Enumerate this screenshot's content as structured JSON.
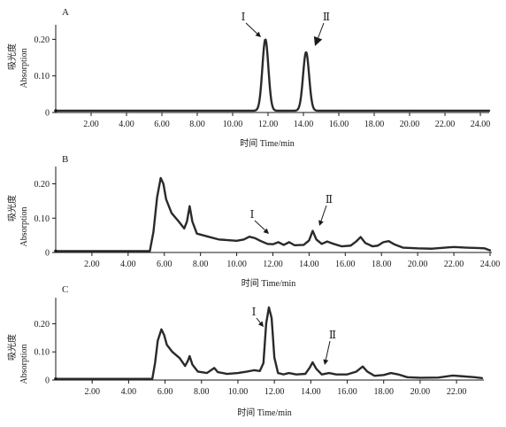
{
  "chart_data": [
    {
      "panel": "A",
      "type": "line",
      "xlabel": "时间  Time/min",
      "ylabel_cn": "吸光度",
      "ylabel_en": "Absorption",
      "xlim": [
        0,
        24.5
      ],
      "ylim": [
        0,
        0.23
      ],
      "xticks": [
        2,
        4,
        6,
        8,
        10,
        12,
        14,
        16,
        18,
        20,
        22,
        24
      ],
      "xtick_labels": [
        "2.00",
        "4.00",
        "6.00",
        "8.00",
        "10.00",
        "12.00",
        "14.00",
        "16.00",
        "18.00",
        "20.00",
        "22.00",
        "24.00"
      ],
      "yticks": [
        0,
        0.1,
        0.2
      ],
      "ytick_labels": [
        "0",
        "0.10",
        "0.20"
      ],
      "baseline": 0.005,
      "peaks": [
        {
          "x": 11.85,
          "h": 0.195,
          "w": 0.17
        },
        {
          "x": 14.15,
          "h": 0.16,
          "w": 0.17
        }
      ],
      "annotations": [
        {
          "label": "Ⅰ",
          "peak_x": 11.85,
          "peak_y": 0.2
        },
        {
          "label": "Ⅱ",
          "peak_x": 14.15,
          "peak_y": 0.165
        }
      ]
    },
    {
      "panel": "B",
      "type": "line",
      "xlabel": "时间  Time/min",
      "ylabel_cn": "吸光度",
      "ylabel_en": "Absorption",
      "xlim": [
        0,
        24.1
      ],
      "ylim": [
        0,
        0.24
      ],
      "xticks": [
        2,
        4,
        6,
        8,
        10,
        12,
        14,
        16,
        18,
        20,
        22,
        24
      ],
      "xtick_labels": [
        "2.00",
        "4.00",
        "6.00",
        "8.00",
        "10.00",
        "12.00",
        "14.00",
        "16.00",
        "18.00",
        "20.00",
        "22.00",
        "24.00"
      ],
      "yticks": [
        0,
        0.1,
        0.2
      ],
      "ytick_labels": [
        "0",
        "0.10",
        "0.20"
      ],
      "points": [
        [
          0,
          0.004
        ],
        [
          5.2,
          0.004
        ],
        [
          5.4,
          0.06
        ],
        [
          5.6,
          0.16
        ],
        [
          5.8,
          0.217
        ],
        [
          5.95,
          0.2
        ],
        [
          6.1,
          0.155
        ],
        [
          6.4,
          0.115
        ],
        [
          6.8,
          0.09
        ],
        [
          7.1,
          0.07
        ],
        [
          7.25,
          0.09
        ],
        [
          7.4,
          0.135
        ],
        [
          7.55,
          0.09
        ],
        [
          7.8,
          0.055
        ],
        [
          8.5,
          0.045
        ],
        [
          9.0,
          0.038
        ],
        [
          9.5,
          0.036
        ],
        [
          10.0,
          0.034
        ],
        [
          10.4,
          0.038
        ],
        [
          10.7,
          0.046
        ],
        [
          11.0,
          0.042
        ],
        [
          11.3,
          0.034
        ],
        [
          11.7,
          0.025
        ],
        [
          12.0,
          0.024
        ],
        [
          12.3,
          0.03
        ],
        [
          12.6,
          0.022
        ],
        [
          12.9,
          0.03
        ],
        [
          13.2,
          0.021
        ],
        [
          13.7,
          0.022
        ],
        [
          14.0,
          0.035
        ],
        [
          14.2,
          0.063
        ],
        [
          14.4,
          0.038
        ],
        [
          14.7,
          0.025
        ],
        [
          15.0,
          0.032
        ],
        [
          15.3,
          0.026
        ],
        [
          15.8,
          0.018
        ],
        [
          16.3,
          0.02
        ],
        [
          16.6,
          0.032
        ],
        [
          16.85,
          0.045
        ],
        [
          17.1,
          0.028
        ],
        [
          17.5,
          0.018
        ],
        [
          17.8,
          0.02
        ],
        [
          18.1,
          0.03
        ],
        [
          18.4,
          0.033
        ],
        [
          18.7,
          0.024
        ],
        [
          19.2,
          0.014
        ],
        [
          20.0,
          0.012
        ],
        [
          20.8,
          0.011
        ],
        [
          21.5,
          0.014
        ],
        [
          22.0,
          0.016
        ],
        [
          22.7,
          0.014
        ],
        [
          23.3,
          0.013
        ],
        [
          23.7,
          0.012
        ],
        [
          24.0,
          0.006
        ]
      ],
      "annotations": [
        {
          "label": "Ⅰ",
          "peak_x": 11.7,
          "peak_y": 0.04
        },
        {
          "label": "Ⅱ",
          "peak_x": 14.2,
          "peak_y": 0.068
        }
      ]
    },
    {
      "panel": "C",
      "type": "line",
      "xlabel": "时间  Time/min",
      "ylabel_cn": "吸光度",
      "ylabel_en": "Absorption",
      "xlim": [
        0,
        23.5
      ],
      "ylim": [
        0,
        0.28
      ],
      "xticks": [
        2,
        4,
        6,
        8,
        10,
        12,
        14,
        16,
        18,
        20,
        22
      ],
      "xtick_labels": [
        "2.00",
        "4.00",
        "6.00",
        "8.00",
        "10.00",
        "12.00",
        "14.00",
        "16.00",
        "18.00",
        "20.00",
        "22.00"
      ],
      "yticks": [
        0,
        0.1,
        0.2
      ],
      "ytick_labels": [
        "0",
        "0.10",
        "0.20"
      ],
      "points": [
        [
          0,
          0.004
        ],
        [
          5.3,
          0.004
        ],
        [
          5.45,
          0.06
        ],
        [
          5.6,
          0.14
        ],
        [
          5.8,
          0.18
        ],
        [
          5.95,
          0.16
        ],
        [
          6.1,
          0.125
        ],
        [
          6.4,
          0.1
        ],
        [
          6.8,
          0.078
        ],
        [
          7.1,
          0.05
        ],
        [
          7.25,
          0.068
        ],
        [
          7.35,
          0.085
        ],
        [
          7.5,
          0.055
        ],
        [
          7.8,
          0.03
        ],
        [
          8.3,
          0.025
        ],
        [
          8.7,
          0.043
        ],
        [
          8.9,
          0.028
        ],
        [
          9.4,
          0.022
        ],
        [
          10.0,
          0.025
        ],
        [
          10.5,
          0.03
        ],
        [
          10.9,
          0.035
        ],
        [
          11.2,
          0.032
        ],
        [
          11.4,
          0.06
        ],
        [
          11.55,
          0.2
        ],
        [
          11.7,
          0.258
        ],
        [
          11.85,
          0.22
        ],
        [
          12.0,
          0.08
        ],
        [
          12.2,
          0.025
        ],
        [
          12.5,
          0.02
        ],
        [
          12.8,
          0.025
        ],
        [
          13.2,
          0.02
        ],
        [
          13.7,
          0.022
        ],
        [
          13.95,
          0.045
        ],
        [
          14.1,
          0.063
        ],
        [
          14.3,
          0.04
        ],
        [
          14.6,
          0.02
        ],
        [
          15.0,
          0.025
        ],
        [
          15.4,
          0.02
        ],
        [
          16.0,
          0.02
        ],
        [
          16.5,
          0.03
        ],
        [
          16.85,
          0.048
        ],
        [
          17.1,
          0.03
        ],
        [
          17.5,
          0.015
        ],
        [
          18.0,
          0.018
        ],
        [
          18.4,
          0.025
        ],
        [
          18.8,
          0.02
        ],
        [
          19.3,
          0.01
        ],
        [
          20.0,
          0.008
        ],
        [
          21.0,
          0.009
        ],
        [
          21.8,
          0.016
        ],
        [
          22.4,
          0.013
        ],
        [
          23.0,
          0.01
        ],
        [
          23.4,
          0.007
        ]
      ],
      "annotations": [
        {
          "label": "Ⅰ",
          "peak_x": 11.7,
          "peak_y": 0.262
        },
        {
          "label": "Ⅱ",
          "peak_x": 14.6,
          "peak_y": 0.04
        }
      ]
    }
  ]
}
